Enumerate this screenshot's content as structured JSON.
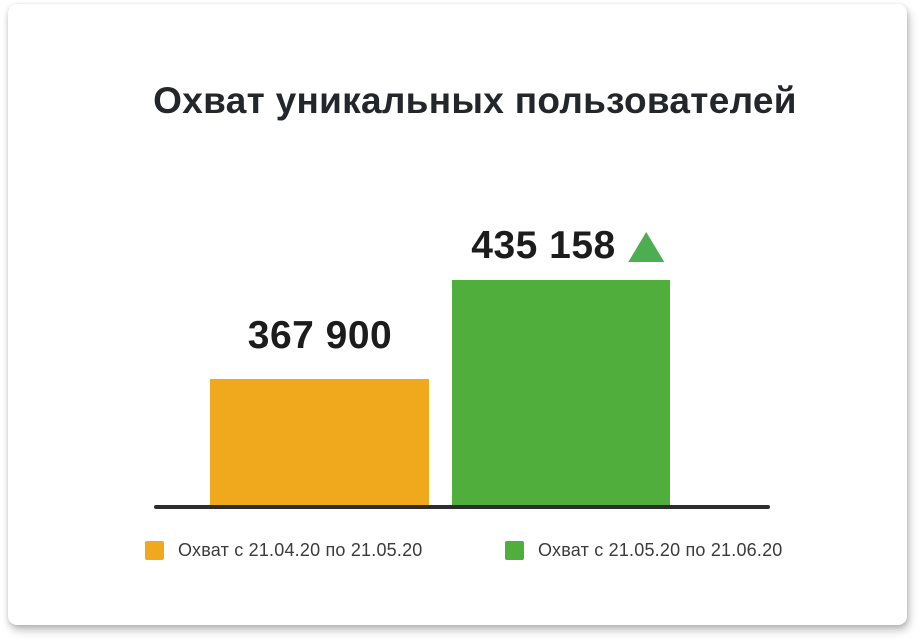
{
  "chart_data": {
    "type": "bar",
    "title": "Охват уникальных пользователей",
    "categories": [
      "Охват с 21.04.20 по 21.05.20",
      "Охват с 21.05.20 по 21.06.20"
    ],
    "series": [
      {
        "name": "Охват с 21.04.20 по 21.05.20",
        "value": 367900,
        "label": "367 900",
        "color": "#f0a81c"
      },
      {
        "name": "Охват с 21.05.20 по 21.06.20",
        "value": 435158,
        "label": "435 158",
        "color": "#50ae3c",
        "trend": "up",
        "trend_color": "#4cae50"
      }
    ],
    "xlabel": "",
    "ylabel": "",
    "ylim": [
      281000,
      435158
    ],
    "grid": false,
    "legend_position": "bottom",
    "axis_color": "#2d2d2d",
    "value_label_color": "#1c1c1c",
    "title_color": "#23272b"
  }
}
